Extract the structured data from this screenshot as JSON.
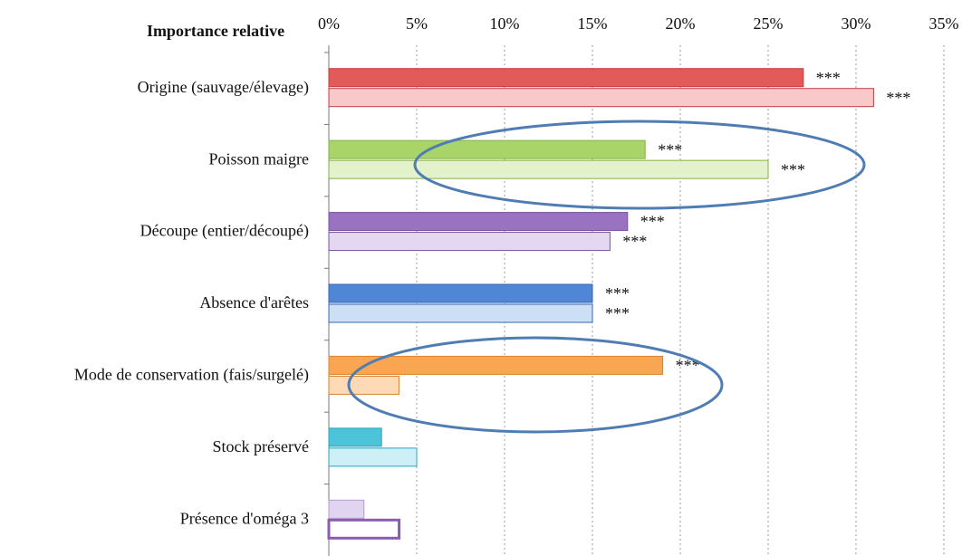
{
  "chart_data": {
    "type": "hbar",
    "title": "Importance relative",
    "categories": [
      "Origine (sauvage/élevage)",
      "Poisson maigre",
      "Découpe (entier/découpé)",
      "Absence d'arêtes",
      "Mode de conservation (fais/surgelé)",
      "Stock préservé",
      "Présence d'oméga 3"
    ],
    "series": [
      {
        "values": [
          27,
          18,
          17,
          15,
          19,
          3,
          2
        ],
        "colors": [
          "#e35a5a",
          "#a8d46a",
          "#9a72c2",
          "#4f86d6",
          "#f9a552",
          "#4cc3d9",
          "#e0d4f0"
        ],
        "strokes": [
          "#c43c3c",
          "#86b04a",
          "#7a52a2",
          "#3566b0",
          "#d98532",
          "#2ca3b9",
          "#b09cd0"
        ],
        "labels": [
          "***",
          "***",
          "***",
          "***",
          "***",
          null,
          null
        ]
      },
      {
        "values": [
          31,
          25,
          16,
          15,
          4,
          5,
          4
        ],
        "colors": [
          "#f9c8c8",
          "#e3f2c8",
          "#e3d8f0",
          "#cddff5",
          "#fdd9b5",
          "#cdf0f7",
          "#ffffff"
        ],
        "strokes": [
          "#c43c3c",
          "#86b04a",
          "#7a52a2",
          "#3566b0",
          "#d98532",
          "#2ca3b9",
          "#8a5cb0"
        ],
        "labels": [
          "***",
          "***",
          "***",
          "***",
          null,
          null,
          null
        ]
      }
    ],
    "xlim": [
      0,
      35
    ],
    "xticks": [
      {
        "value": 0,
        "label": "0%"
      },
      {
        "value": 5,
        "label": "5%"
      },
      {
        "value": 10,
        "label": "10%"
      },
      {
        "value": 15,
        "label": "15%"
      },
      {
        "value": 20,
        "label": "20%"
      },
      {
        "value": 25,
        "label": "25%"
      },
      {
        "value": 30,
        "label": "30%"
      },
      {
        "value": 35,
        "label": "35%"
      }
    ],
    "grid": true
  }
}
